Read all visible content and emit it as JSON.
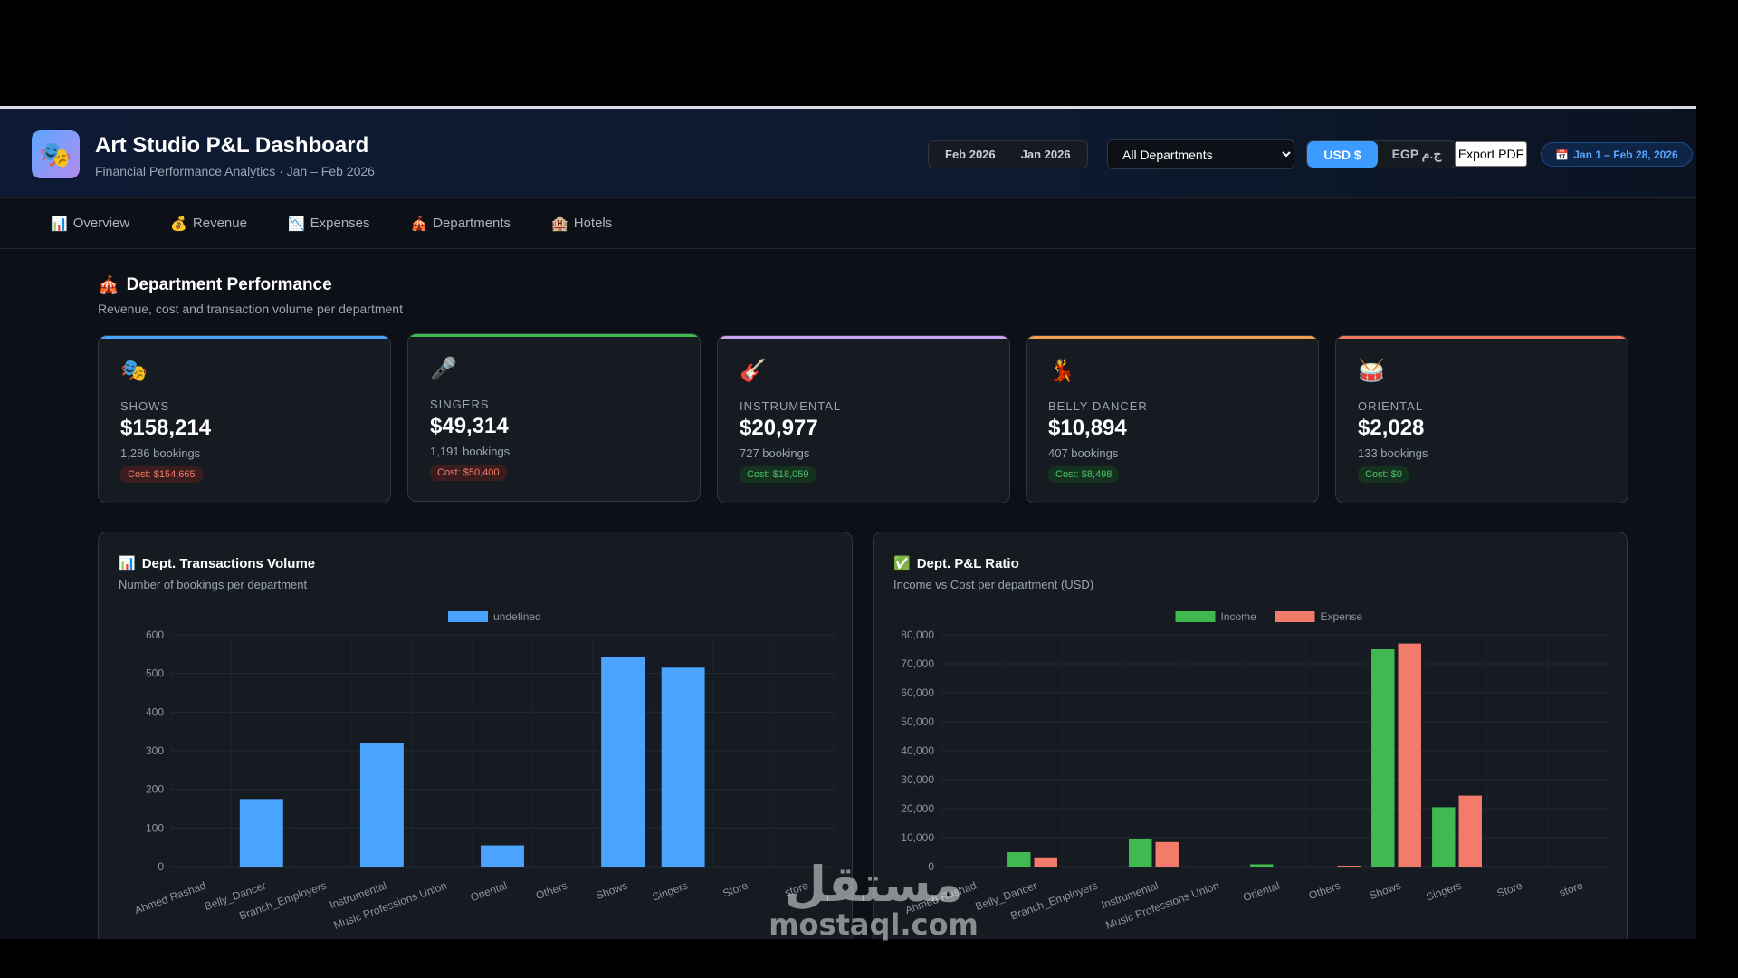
{
  "header": {
    "logo_icon": "theater-masks-icon",
    "title": "Art Studio P&L Dashboard",
    "subtitle": "Financial Performance Analytics · Jan – Feb 2026",
    "months": [
      "Feb 2026",
      "Jan 2026"
    ],
    "department_select": "All Departments",
    "currency_usd": "USD $",
    "currency_egp": "EGP ج.م",
    "export_label": "Export PDF",
    "date_range": "Jan 1 – Feb 28, 2026"
  },
  "nav": {
    "items": [
      {
        "icon": "📊",
        "label": "Overview"
      },
      {
        "icon": "💰",
        "label": "Revenue"
      },
      {
        "icon": "📉",
        "label": "Expenses"
      },
      {
        "icon": "🎪",
        "label": "Departments"
      },
      {
        "icon": "🏨",
        "label": "Hotels"
      }
    ]
  },
  "section": {
    "icon": "🎪",
    "title": "Department Performance",
    "subtitle": "Revenue, cost and transaction volume per department"
  },
  "cards": [
    {
      "icon": "🎭",
      "label": "SHOWS",
      "value": "$158,214",
      "count": "1,286 bookings",
      "cost": "Cost: $154,665",
      "cost_status": "red",
      "accent": "#4aa3ff"
    },
    {
      "icon": "🎤",
      "label": "SINGERS",
      "value": "$49,314",
      "count": "1,191 bookings",
      "cost": "Cost: $50,400",
      "cost_status": "red",
      "accent": "#3fb950"
    },
    {
      "icon": "🎸",
      "label": "INSTRUMENTAL",
      "value": "$20,977",
      "count": "727 bookings",
      "cost": "Cost: $18,059",
      "cost_status": "green",
      "accent": "#c9a2f0"
    },
    {
      "icon": "💃",
      "label": "BELLY DANCER",
      "value": "$10,894",
      "count": "407 bookings",
      "cost": "Cost: $8,498",
      "cost_status": "green",
      "accent": "#f0a050"
    },
    {
      "icon": "🥁",
      "label": "ORIENTAL",
      "value": "$2,028",
      "count": "133 bookings",
      "cost": "Cost: $0",
      "cost_status": "green",
      "accent": "#f07860"
    }
  ],
  "panels": {
    "volume": {
      "icon": "📊",
      "title": "Dept. Transactions Volume",
      "subtitle": "Number of bookings per department"
    },
    "pl": {
      "icon": "✅",
      "title": "Dept. P&L Ratio",
      "subtitle": "Income vs Cost per department (USD)"
    }
  },
  "chart_data": [
    {
      "type": "bar",
      "categories": [
        "Ahmed Rashad",
        "Belly_Dancer",
        "Branch_Employers",
        "Instrumental",
        "Music Professions Union",
        "Oriental",
        "Others",
        "Shows",
        "Singers",
        "Store",
        "store"
      ],
      "series": [
        {
          "name": "undefined",
          "values": [
            0,
            175,
            0,
            320,
            0,
            55,
            0,
            543,
            515,
            0,
            0
          ],
          "color": "#4aa3ff"
        }
      ],
      "ylim": [
        0,
        600
      ],
      "yticks": [
        "600",
        "500",
        "400",
        "300",
        "200",
        "100",
        "0"
      ],
      "legend": "top-center",
      "grid": true
    },
    {
      "type": "bar",
      "categories": [
        "Ahmed Rashad",
        "Belly_Dancer",
        "Branch_Employers",
        "Instrumental",
        "Music Professions Union",
        "Oriental",
        "Others",
        "Shows",
        "Singers",
        "Store",
        "store"
      ],
      "series": [
        {
          "name": "Income",
          "values": [
            0,
            5000,
            0,
            9500,
            0,
            800,
            0,
            75000,
            20500,
            0,
            0
          ],
          "color": "#3fb950"
        },
        {
          "name": "Expense",
          "values": [
            0,
            3200,
            0,
            8500,
            0,
            0,
            300,
            77000,
            24500,
            0,
            0
          ],
          "color": "#f37b6b"
        }
      ],
      "ylim": [
        0,
        80000
      ],
      "yticks": [
        "80,000",
        "70,000",
        "60,000",
        "50,000",
        "40,000",
        "30,000",
        "20,000",
        "10,000",
        "0"
      ],
      "legend": "top-center",
      "grid": true
    }
  ],
  "watermark": {
    "arabic": "مستقل",
    "latin": "mostaql.com"
  }
}
